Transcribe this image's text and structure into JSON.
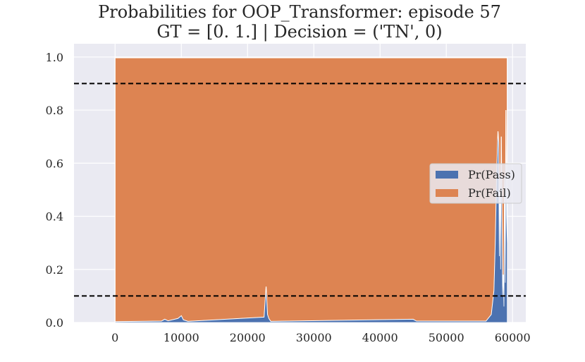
{
  "chart_data": {
    "type": "area",
    "title": "Probabilities for OOP_Transformer: episode 57",
    "subtitle": "GT = [0. 1.] | Decision = ('TN', 0)",
    "xlabel": "",
    "ylabel": "",
    "xlim": [
      -6200,
      62000
    ],
    "ylim": [
      0.0,
      1.05
    ],
    "xticks": [
      0,
      10000,
      20000,
      30000,
      40000,
      50000,
      60000
    ],
    "xtick_labels": [
      "0",
      "10000",
      "20000",
      "30000",
      "40000",
      "50000",
      "60000"
    ],
    "yticks": [
      0.0,
      0.2,
      0.4,
      0.6,
      0.8,
      1.0
    ],
    "ytick_labels": [
      "0.0",
      "0.2",
      "0.4",
      "0.6",
      "0.8",
      "1.0"
    ],
    "grid": true,
    "stacked": true,
    "x_end": 59200,
    "thresholds": [
      0.9,
      0.1
    ],
    "legend": {
      "placement": "center-right"
    },
    "series": [
      {
        "name": "Pr(Pass)",
        "color": "#4C72B0",
        "x": [
          0,
          7000,
          7500,
          8000,
          9500,
          10000,
          10300,
          11000,
          22500,
          22800,
          23000,
          23200,
          23500,
          45000,
          45500,
          56000,
          56800,
          57200,
          57400,
          57600,
          57800,
          57900,
          58000,
          58100,
          58200,
          58300,
          58400,
          58500,
          58600,
          58700,
          58800,
          58900,
          59000,
          59100,
          59200
        ],
        "values": [
          0.003,
          0.005,
          0.012,
          0.006,
          0.015,
          0.025,
          0.01,
          0.004,
          0.02,
          0.135,
          0.03,
          0.015,
          0.004,
          0.012,
          0.005,
          0.005,
          0.03,
          0.12,
          0.3,
          0.55,
          0.72,
          0.68,
          0.25,
          0.55,
          0.2,
          0.7,
          0.4,
          0.1,
          0.18,
          0.06,
          0.55,
          0.15,
          0.8,
          0.4,
          0.3
        ]
      },
      {
        "name": "Pr(Fail)",
        "color": "#DD8452",
        "x": [
          0,
          59200
        ],
        "values": [
          0.997,
          0.997
        ]
      }
    ]
  }
}
